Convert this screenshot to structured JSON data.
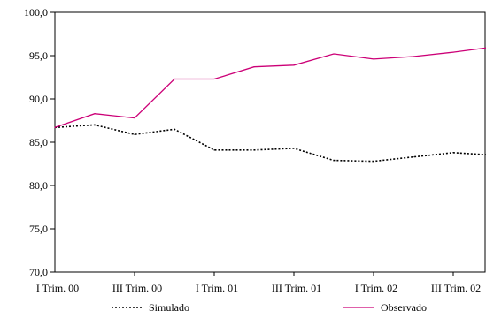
{
  "chart_data": {
    "type": "line",
    "title": "",
    "xlabel": "",
    "ylabel": "",
    "x": [
      0,
      1,
      2,
      3,
      4,
      5,
      6,
      7,
      8,
      9,
      10,
      11
    ],
    "x_tick_labels": [
      {
        "x": 0,
        "label": "I Trim. 00"
      },
      {
        "x": 2,
        "label": "III Trim. 00"
      },
      {
        "x": 4,
        "label": "I Trim. 01"
      },
      {
        "x": 6,
        "label": "III Trim. 01"
      },
      {
        "x": 8,
        "label": "I Trim. 02"
      },
      {
        "x": 10,
        "label": "III Trim. 02"
      }
    ],
    "ylim": [
      70,
      100
    ],
    "y_ticks": [
      70,
      75,
      80,
      85,
      90,
      95,
      100
    ],
    "y_tick_labels": [
      "70,0",
      "75,0",
      "80,0",
      "85,0",
      "90,0",
      "95,0",
      "100,0"
    ],
    "grid": false,
    "legend_position": "bottom",
    "series": [
      {
        "name": "Simulado",
        "style": "dotted",
        "color": "#000000",
        "values": [
          86.7,
          87.0,
          85.9,
          86.5,
          84.1,
          84.1,
          84.3,
          82.9,
          82.8,
          83.3,
          83.8,
          83.5
        ]
      },
      {
        "name": "Observado",
        "style": "solid",
        "color": "#cc0077",
        "values": [
          86.7,
          88.3,
          87.8,
          92.3,
          92.3,
          93.7,
          93.9,
          95.2,
          94.6,
          94.9,
          95.4,
          96.0
        ]
      }
    ]
  }
}
